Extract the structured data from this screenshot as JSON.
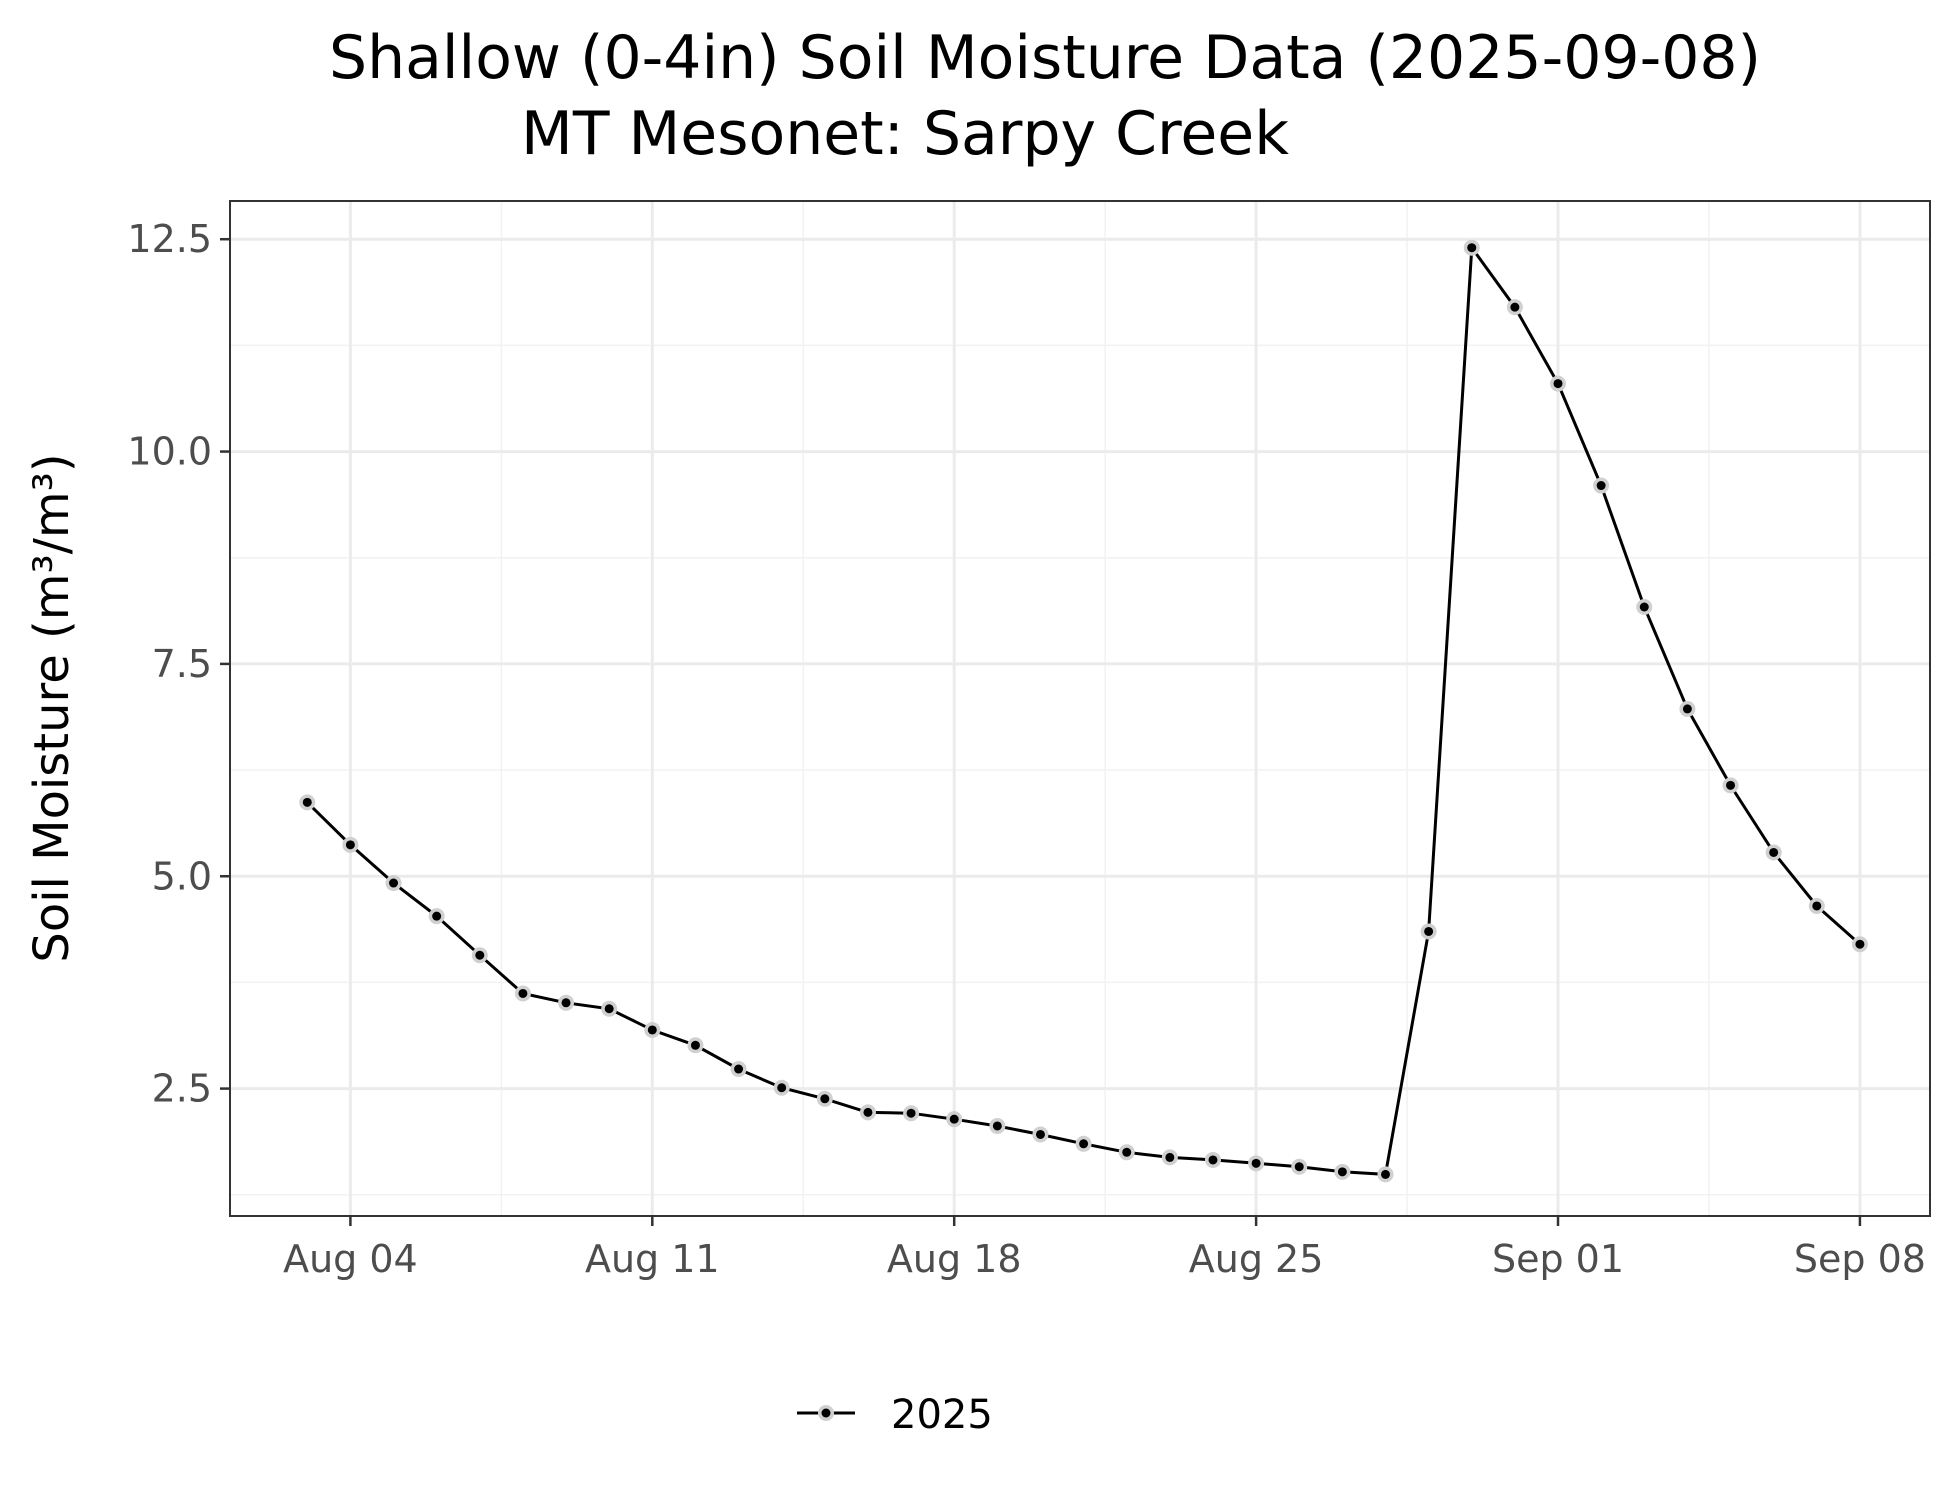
{
  "chart_data": {
    "type": "line",
    "title": "Shallow (0-4in) Soil Moisture Data (2025-09-08)",
    "subtitle": "MT Mesonet: Sarpy Creek",
    "xlabel": "",
    "ylabel": "Soil Moisture (m³/m³)",
    "ylim": [
      1.0,
      12.95
    ],
    "xlim": [
      "2025-08-01T05:00",
      "2025-09-09T15:00"
    ],
    "y_ticks": [
      2.5,
      5.0,
      7.5,
      10.0,
      12.5
    ],
    "y_tick_labels": [
      "2.5",
      "5.0",
      "7.5",
      "10.0",
      "12.5"
    ],
    "x_ticks": [
      "2025-08-04",
      "2025-08-11",
      "2025-08-18",
      "2025-08-25",
      "2025-09-01",
      "2025-09-08"
    ],
    "x_tick_labels": [
      "Aug 04",
      "Aug 11",
      "Aug 18",
      "Aug 25",
      "Sep 01",
      "Sep 08"
    ],
    "y_minor": [
      1.25,
      3.75,
      6.25,
      8.75,
      11.25
    ],
    "x_minor": [
      "2025-08-07T12:00",
      "2025-08-14T12:00",
      "2025-08-21T12:00",
      "2025-08-28T12:00",
      "2025-09-04T12:00"
    ],
    "grid": true,
    "legend_position": "bottom",
    "series": [
      {
        "name": "2025",
        "color": "#000000",
        "x": [
          "2025-08-03",
          "2025-08-04",
          "2025-08-05",
          "2025-08-06",
          "2025-08-07",
          "2025-08-08",
          "2025-08-09",
          "2025-08-10",
          "2025-08-11",
          "2025-08-12",
          "2025-08-13",
          "2025-08-14",
          "2025-08-15",
          "2025-08-16",
          "2025-08-17",
          "2025-08-18",
          "2025-08-19",
          "2025-08-20",
          "2025-08-21",
          "2025-08-22",
          "2025-08-23",
          "2025-08-24",
          "2025-08-25",
          "2025-08-26",
          "2025-08-27",
          "2025-08-28",
          "2025-08-29",
          "2025-08-30",
          "2025-08-31",
          "2025-09-01",
          "2025-09-02",
          "2025-09-03",
          "2025-09-04",
          "2025-09-05",
          "2025-09-06",
          "2025-09-07",
          "2025-09-08"
        ],
        "values": [
          5.87,
          5.37,
          4.92,
          4.53,
          4.07,
          3.62,
          3.51,
          3.44,
          3.19,
          3.01,
          2.73,
          2.51,
          2.38,
          2.22,
          2.21,
          2.14,
          2.06,
          1.96,
          1.85,
          1.75,
          1.69,
          1.66,
          1.62,
          1.58,
          1.52,
          1.49,
          4.35,
          12.4,
          11.7,
          10.8,
          9.6,
          8.17,
          6.97,
          6.07,
          5.28,
          4.65,
          4.2
        ]
      }
    ]
  }
}
